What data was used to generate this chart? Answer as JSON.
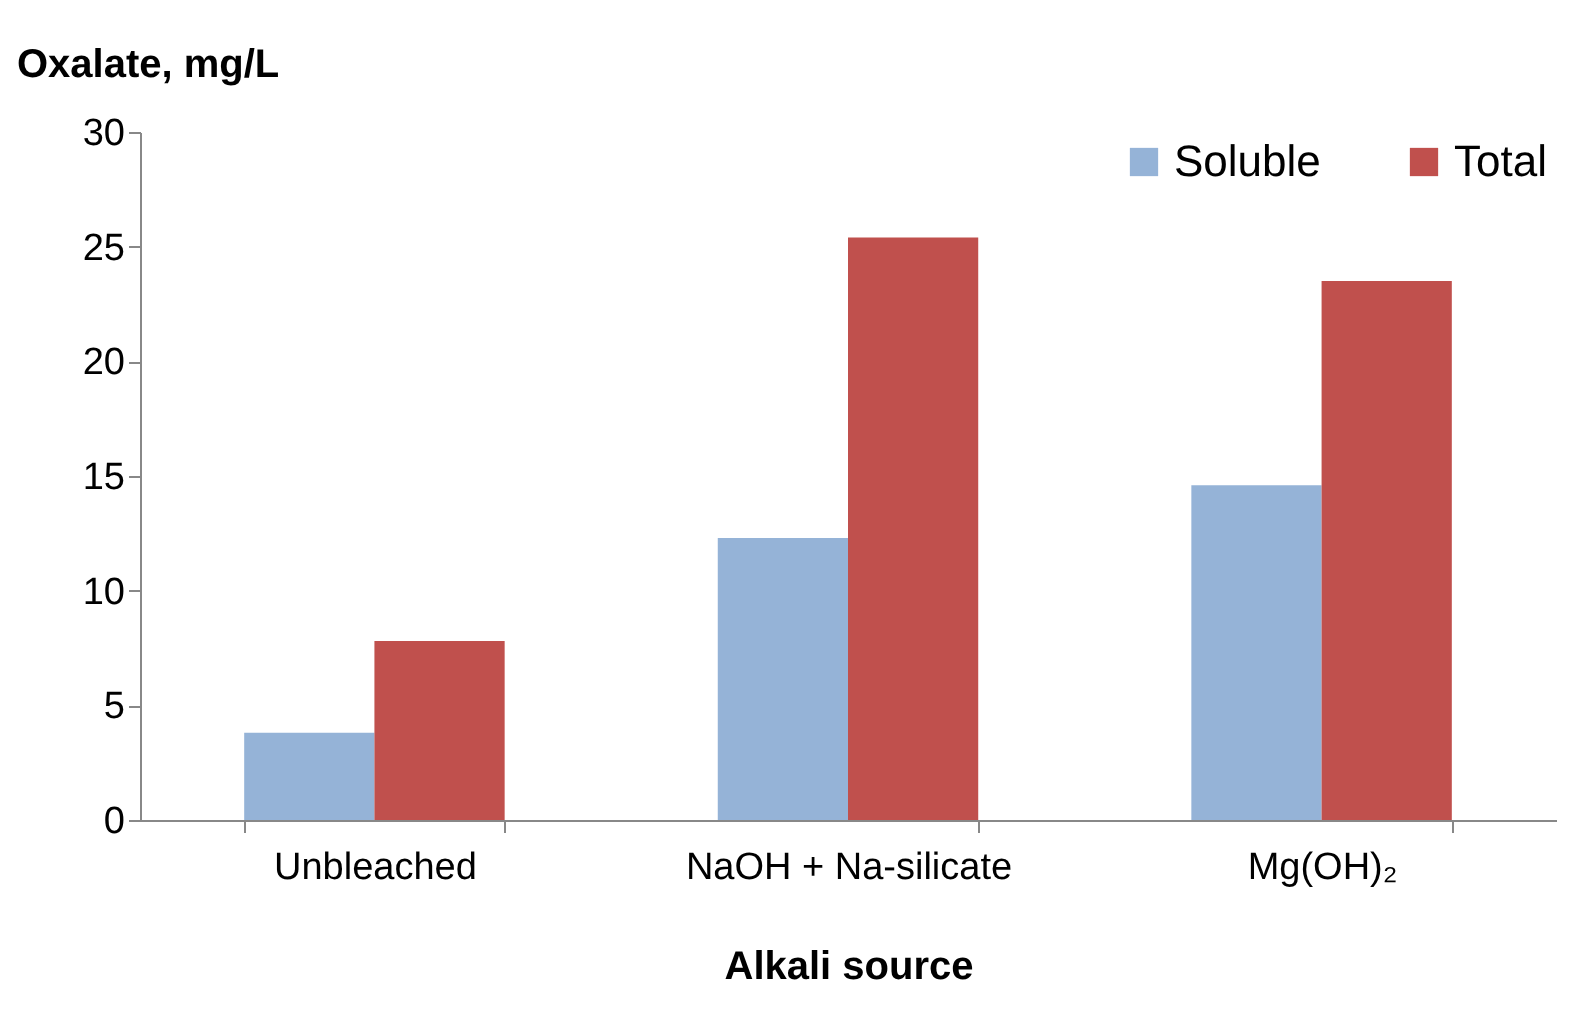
{
  "chart_data": {
    "type": "bar",
    "xlabel": "Alkali source",
    "ylabel": "Oxalate, mg/L",
    "categories": [
      "Unbleached",
      "NaOH + Na-silicate",
      "Mg(OH)₂"
    ],
    "series": [
      {
        "name": "Soluble",
        "color": "#95b3d7",
        "values": [
          3.8,
          12.3,
          14.6
        ]
      },
      {
        "name": "Total",
        "color": "#c0504d",
        "values": [
          7.8,
          25.4,
          23.5
        ]
      }
    ],
    "ylim": [
      0,
      30
    ],
    "yticks": [
      0,
      5,
      10,
      15,
      20,
      25,
      30
    ],
    "grid": false,
    "legend": "top right"
  }
}
